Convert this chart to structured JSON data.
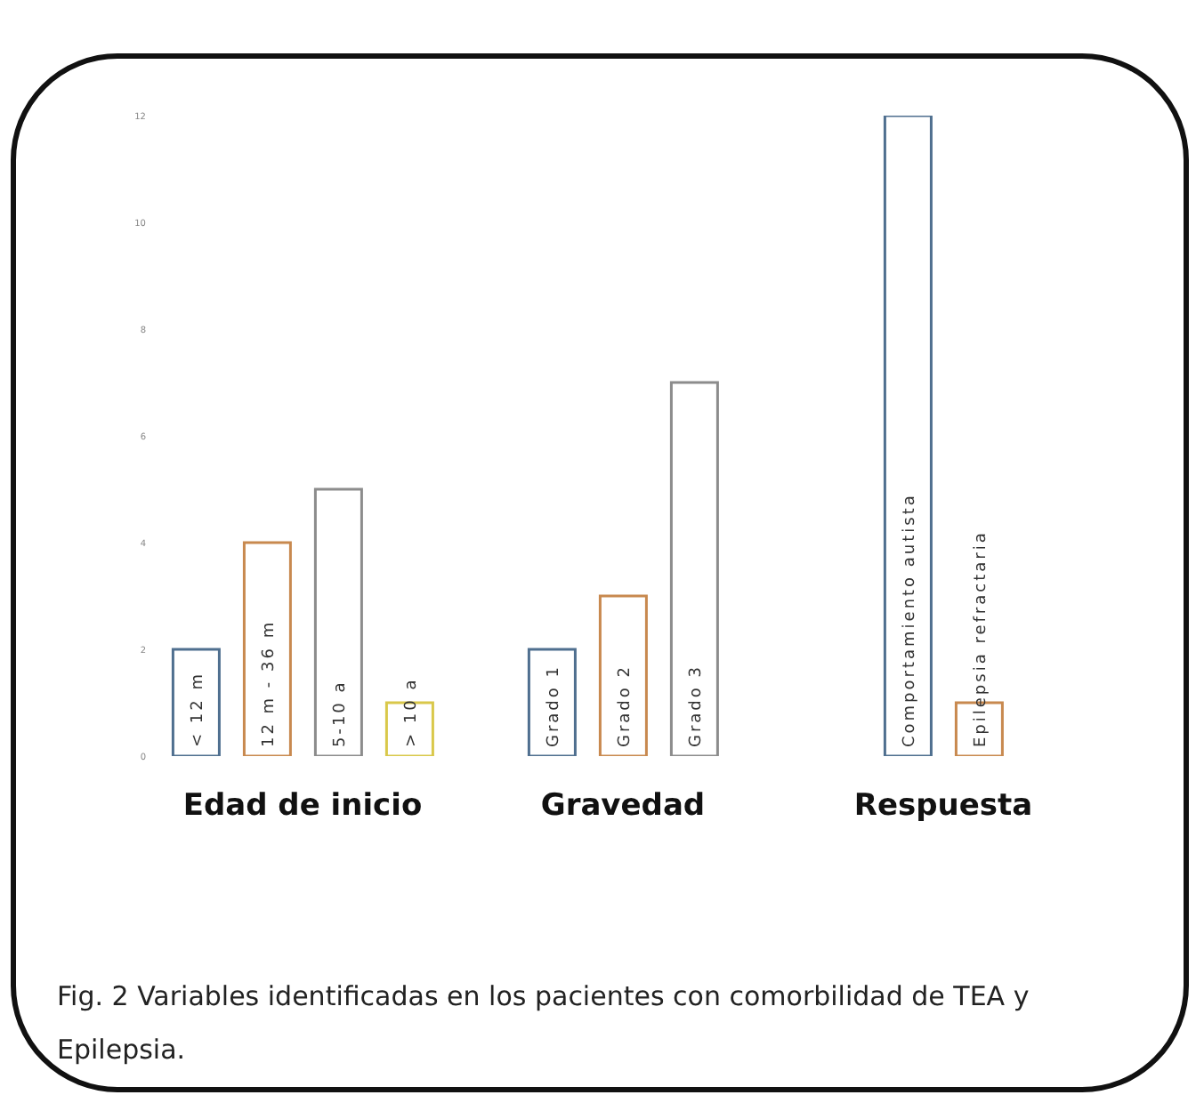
{
  "chart_data": {
    "type": "bar",
    "categories": [
      "< 12 m",
      "12 m - 36 m",
      "5-10 a",
      "> 10 a",
      null,
      "Grado 1",
      "Grado 2",
      "Grado 3",
      null,
      null,
      "Comportamiento autista",
      "Epilepsia refractaria",
      null
    ],
    "values": [
      2,
      4,
      5,
      1,
      null,
      2,
      3,
      7,
      null,
      null,
      12,
      1,
      null
    ],
    "colors": [
      "#4f6f8f",
      "#c8894f",
      "#8c8c8c",
      "#d9c84a",
      null,
      "#4f6f8f",
      "#c8894f",
      "#8c8c8c",
      null,
      null,
      "#4f6f8f",
      "#c8894f",
      null
    ],
    "ylim": [
      0,
      12
    ],
    "yticks": [
      0,
      2,
      4,
      6,
      8,
      10,
      12
    ],
    "grid": false,
    "tick_labels": "y",
    "annotations": [
      "Edad de inicio",
      "Gravedad",
      "Respuesta",
      "Fig. 2 Variables identificadas en los pacientes con comorbilidad de TEA y Epilepsia."
    ]
  }
}
